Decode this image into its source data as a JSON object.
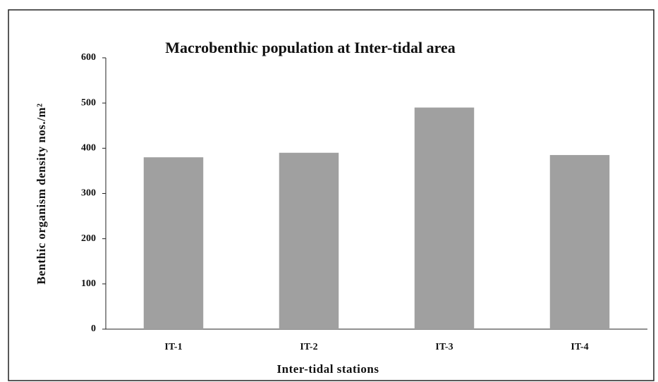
{
  "chart_data": {
    "type": "bar",
    "title": "Macrobenthic population at Inter-tidal area",
    "x_label": "Inter-tidal stations",
    "y_label": "Benthic organism density nos./m²",
    "categories": [
      "IT-1",
      "IT-2",
      "IT-3",
      "IT-4"
    ],
    "values": [
      380,
      390,
      490,
      385
    ],
    "color": "#a0a0a0",
    "ylim": [
      0,
      600
    ],
    "yticks": [
      0,
      100,
      200,
      300,
      400,
      500,
      600
    ],
    "grid": false
  }
}
